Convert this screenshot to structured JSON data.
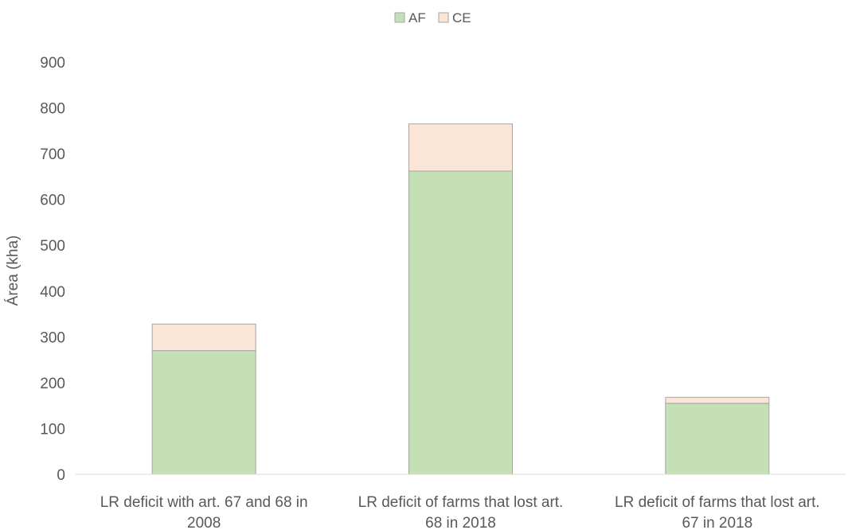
{
  "chart_data": {
    "type": "bar",
    "stacked": true,
    "title": "",
    "xlabel": "",
    "ylabel": "Área (kha)",
    "ylim": [
      0,
      900
    ],
    "yticks": [
      0,
      100,
      200,
      300,
      400,
      500,
      600,
      700,
      800,
      900
    ],
    "grid": false,
    "legend_position": "top",
    "categories": [
      [
        "LR deficit with art. 67 and 68 in",
        "2008"
      ],
      [
        "LR deficit of farms that lost art.",
        "68 in 2018"
      ],
      [
        "LR deficit of farms that lost art.",
        "67 in 2018"
      ]
    ],
    "series": [
      {
        "name": "AF",
        "values": [
          270,
          662,
          155
        ],
        "color": "#c5e0b4"
      },
      {
        "name": "CE",
        "values": [
          58,
          103,
          13
        ],
        "color": "#fbe5d6"
      }
    ]
  }
}
